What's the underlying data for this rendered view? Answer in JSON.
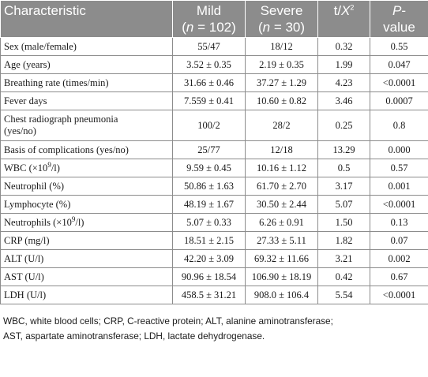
{
  "table": {
    "headers": {
      "characteristic": "Characteristic",
      "mild_label": "Mild",
      "mild_n": "(n = 102)",
      "severe_label": "Severe",
      "severe_n": "(n = 30)",
      "stat_base": "t/X",
      "stat_sup": "2",
      "p_label": "P-",
      "p_label2": "value"
    },
    "rows": [
      {
        "characteristic": "Sex (male/female)",
        "mild": "55/47",
        "severe": "18/12",
        "t": "0.32",
        "p": "0.55"
      },
      {
        "characteristic": "Age (years)",
        "mild": "3.52 ± 0.35",
        "severe": "2.19 ± 0.35",
        "t": "1.99",
        "p": "0.047"
      },
      {
        "characteristic": "Breathing rate (times/min)",
        "mild": "31.66 ± 0.46",
        "severe": "37.27 ± 1.29",
        "t": "4.23",
        "p": "<0.0001"
      },
      {
        "characteristic": "Fever days",
        "mild": "7.559 ± 0.41",
        "severe": "10.60 ± 0.82",
        "t": "3.46",
        "p": "0.0007"
      },
      {
        "characteristic_line1": "Chest radiograph pneumonia",
        "characteristic_line2": "(yes/no)",
        "mild": "100/2",
        "severe": "28/2",
        "t": "0.25",
        "p": "0.8"
      },
      {
        "characteristic": "Basis of complications (yes/no)",
        "mild": "25/77",
        "severe": "12/18",
        "t": "13.29",
        "p": "0.000"
      },
      {
        "characteristic_pre": "WBC (×10",
        "characteristic_sup": "9",
        "characteristic_post": "/l)",
        "mild": "9.59 ± 0.45",
        "severe": "10.16 ± 1.12",
        "t": "0.5",
        "p": "0.57"
      },
      {
        "characteristic": "Neutrophil (%)",
        "mild": "50.86 ± 1.63",
        "severe": "61.70 ± 2.70",
        "t": "3.17",
        "p": "0.001"
      },
      {
        "characteristic": "Lymphocyte (%)",
        "mild": "48.19 ± 1.67",
        "severe": "30.50 ± 2.44",
        "t": "5.07",
        "p": "<0.0001"
      },
      {
        "characteristic_pre": "Neutrophils (×10",
        "characteristic_sup": "9",
        "characteristic_post": "/l)",
        "mild": "5.07 ± 0.33",
        "severe": "6.26 ± 0.91",
        "t": "1.50",
        "p": "0.13"
      },
      {
        "characteristic": "CRP (mg/l)",
        "mild": "18.51 ± 2.15",
        "severe": "27.33 ± 5.11",
        "t": "1.82",
        "p": "0.07"
      },
      {
        "characteristic": "ALT (U/l)",
        "mild": "42.20 ± 3.09",
        "severe": "69.32 ± 11.66",
        "t": "3.21",
        "p": "0.002"
      },
      {
        "characteristic": "AST (U/l)",
        "mild": "90.96 ± 18.54",
        "severe": "106.90 ± 18.19",
        "t": "0.42",
        "p": "0.67"
      },
      {
        "characteristic": "LDH (U/l)",
        "mild": "458.5 ± 31.21",
        "severe": "908.0 ± 106.4",
        "t": "5.54",
        "p": "<0.0001"
      }
    ]
  },
  "footnote": {
    "line1": "WBC, white blood cells; CRP, C-reactive protein; ALT, alanine aminotransferase;",
    "line2": "AST, aspartate aminotransferase; LDH, lactate dehydrogenase."
  },
  "colors": {
    "header_bg": "#8c8c8c",
    "header_text": "#ffffff",
    "border": "#8c8c8c",
    "text": "#1a1a1a"
  }
}
